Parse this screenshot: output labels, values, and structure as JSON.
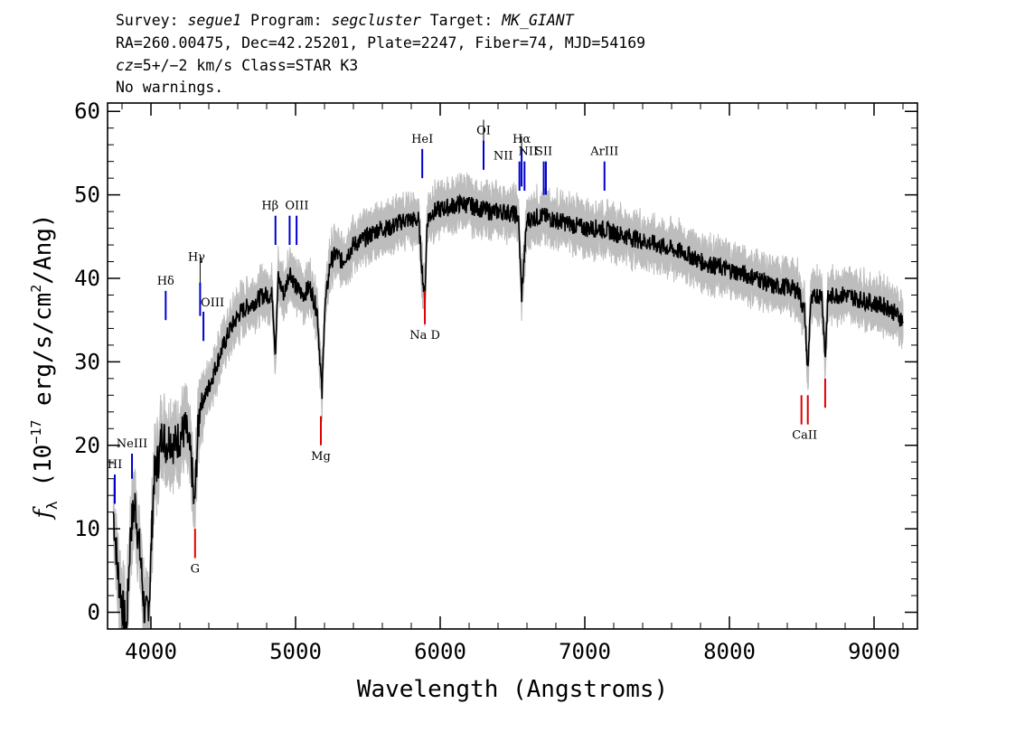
{
  "header": {
    "survey_label": "Survey: ",
    "survey": "segue1",
    "program_label": " Program: ",
    "program": "segcluster",
    "target_label": " Target: ",
    "target": "MK_GIANT",
    "line2": "RA=260.00475, Dec=42.25201, Plate=2247, Fiber=74, MJD=54169",
    "line3_prefix": "cz",
    "line3_rest": "=5+/−2 km/s Class=STAR K3",
    "line4": "No warnings."
  },
  "chart_data": {
    "type": "line",
    "xlabel": "Wavelength (Angstroms)",
    "ylabel": "f_λ (10^-17 erg/s/cm^2/Ang)",
    "xlim": [
      3700,
      9300
    ],
    "ylim": [
      -2,
      61
    ],
    "x_ticks": [
      4000,
      5000,
      6000,
      7000,
      8000,
      9000
    ],
    "y_ticks": [
      0,
      10,
      20,
      30,
      40,
      50,
      60
    ],
    "series": [
      {
        "role": "flux",
        "color": "#000000",
        "x": [
          3740,
          3770,
          3800,
          3830,
          3860,
          3890,
          3930,
          3960,
          3990,
          4020,
          4060,
          4080,
          4100,
          4130,
          4160,
          4200,
          4240,
          4280,
          4300,
          4320,
          4340,
          4380,
          4420,
          4480,
          4550,
          4620,
          4700,
          4780,
          4840,
          4860,
          4880,
          4920,
          4960,
          5000,
          5050,
          5100,
          5150,
          5170,
          5183,
          5200,
          5240,
          5280,
          5320,
          5400,
          5500,
          5580,
          5650,
          5750,
          5850,
          5880,
          5893,
          5910,
          5950,
          6050,
          6150,
          6250,
          6350,
          6450,
          6540,
          6563,
          6600,
          6700,
          6800,
          6900,
          7000,
          7100,
          7200,
          7300,
          7400,
          7500,
          7600,
          7700,
          7800,
          7900,
          8000,
          8100,
          8200,
          8300,
          8400,
          8480,
          8500,
          8520,
          8542,
          8560,
          8600,
          8640,
          8662,
          8680,
          8720,
          8800,
          8900,
          9000,
          9100,
          9200
        ],
        "y": [
          12,
          5,
          1,
          -2,
          10,
          13,
          6,
          -1,
          2,
          16,
          19,
          22,
          20,
          21,
          20,
          21,
          22,
          18,
          12,
          20,
          25,
          26,
          28,
          31,
          34,
          36,
          37,
          38,
          38,
          31,
          40,
          38,
          41,
          39,
          38,
          39,
          36,
          30,
          26,
          36,
          42,
          43,
          42,
          44,
          45,
          46,
          46,
          47,
          47,
          40,
          37,
          47,
          48,
          48.5,
          49,
          48.5,
          48,
          48,
          47.5,
          38,
          47,
          47.5,
          47,
          46.5,
          46,
          46,
          45.5,
          45,
          44.5,
          44,
          43.5,
          43,
          42,
          41.5,
          41,
          40.5,
          40,
          39,
          39,
          38.5,
          37,
          36,
          28.5,
          37,
          38,
          38,
          30.5,
          37.5,
          38,
          38,
          37.5,
          37,
          36.5,
          35
        ]
      }
    ],
    "emission_lines": [
      {
        "label": "HI",
        "x": 3750,
        "y_top": 16.5,
        "y_bottom": 13
      },
      {
        "label": "NeIII",
        "x": 3869,
        "y_top": 19,
        "y_bottom": 16
      },
      {
        "label": "Hδ",
        "x": 4102,
        "y_top": 38.5,
        "y_bottom": 35
      },
      {
        "label": "Hγ",
        "x": 4340,
        "y_top": 39.5,
        "y_bottom": 35.5
      },
      {
        "label": "OIII",
        "x": 4363,
        "y_top": 36,
        "y_bottom": 32.5
      },
      {
        "label": "Hβ",
        "x": 4861,
        "y_top": 47.5,
        "y_bottom": 44
      },
      {
        "label": "OIII",
        "x": 4959,
        "y_top": 47.5,
        "y_bottom": 44
      },
      {
        "label": "OIII",
        "x": 5007,
        "y_top": 47.5,
        "y_bottom": 44
      },
      {
        "label": "HeI",
        "x": 5876,
        "y_top": 55.5,
        "y_bottom": 52
      },
      {
        "label": "OI",
        "x": 6300,
        "y_top": 56.5,
        "y_bottom": 53
      },
      {
        "label": "NII",
        "x": 6548,
        "y_top": 54,
        "y_bottom": 50.5
      },
      {
        "label": "Hα",
        "x": 6563,
        "y_top": 55.5,
        "y_bottom": 51
      },
      {
        "label": "NII",
        "x": 6583,
        "y_top": 54,
        "y_bottom": 50.5
      },
      {
        "label": "SII",
        "x": 6716,
        "y_top": 54,
        "y_bottom": 50
      },
      {
        "label": "SII",
        "x": 6731,
        "y_top": 54,
        "y_bottom": 50
      },
      {
        "label": "ArIII",
        "x": 7136,
        "y_top": 54,
        "y_bottom": 50.5
      }
    ],
    "absorption_lines": [
      {
        "label": "G",
        "x": 4305,
        "y_top": 10,
        "y_bottom": 6.5
      },
      {
        "label": "Mg",
        "x": 5175,
        "y_top": 23.5,
        "y_bottom": 20
      },
      {
        "label": "Na D",
        "x": 5894,
        "y_top": 38.5,
        "y_bottom": 34.5
      },
      {
        "label": "CaII",
        "x": 8498,
        "y_top": 26,
        "y_bottom": 22.5
      },
      {
        "label": "CaII",
        "x": 8542,
        "y_top": 26,
        "y_bottom": 22.5
      },
      {
        "label": "CaII",
        "x": 8662,
        "y_top": 28,
        "y_bottom": 24.5
      }
    ],
    "colors": {
      "flux": "#000000",
      "error": "#bdbdbd",
      "emission": "#0000cc",
      "absorption": "#dd0000",
      "annotation_tick": "#000000"
    }
  }
}
